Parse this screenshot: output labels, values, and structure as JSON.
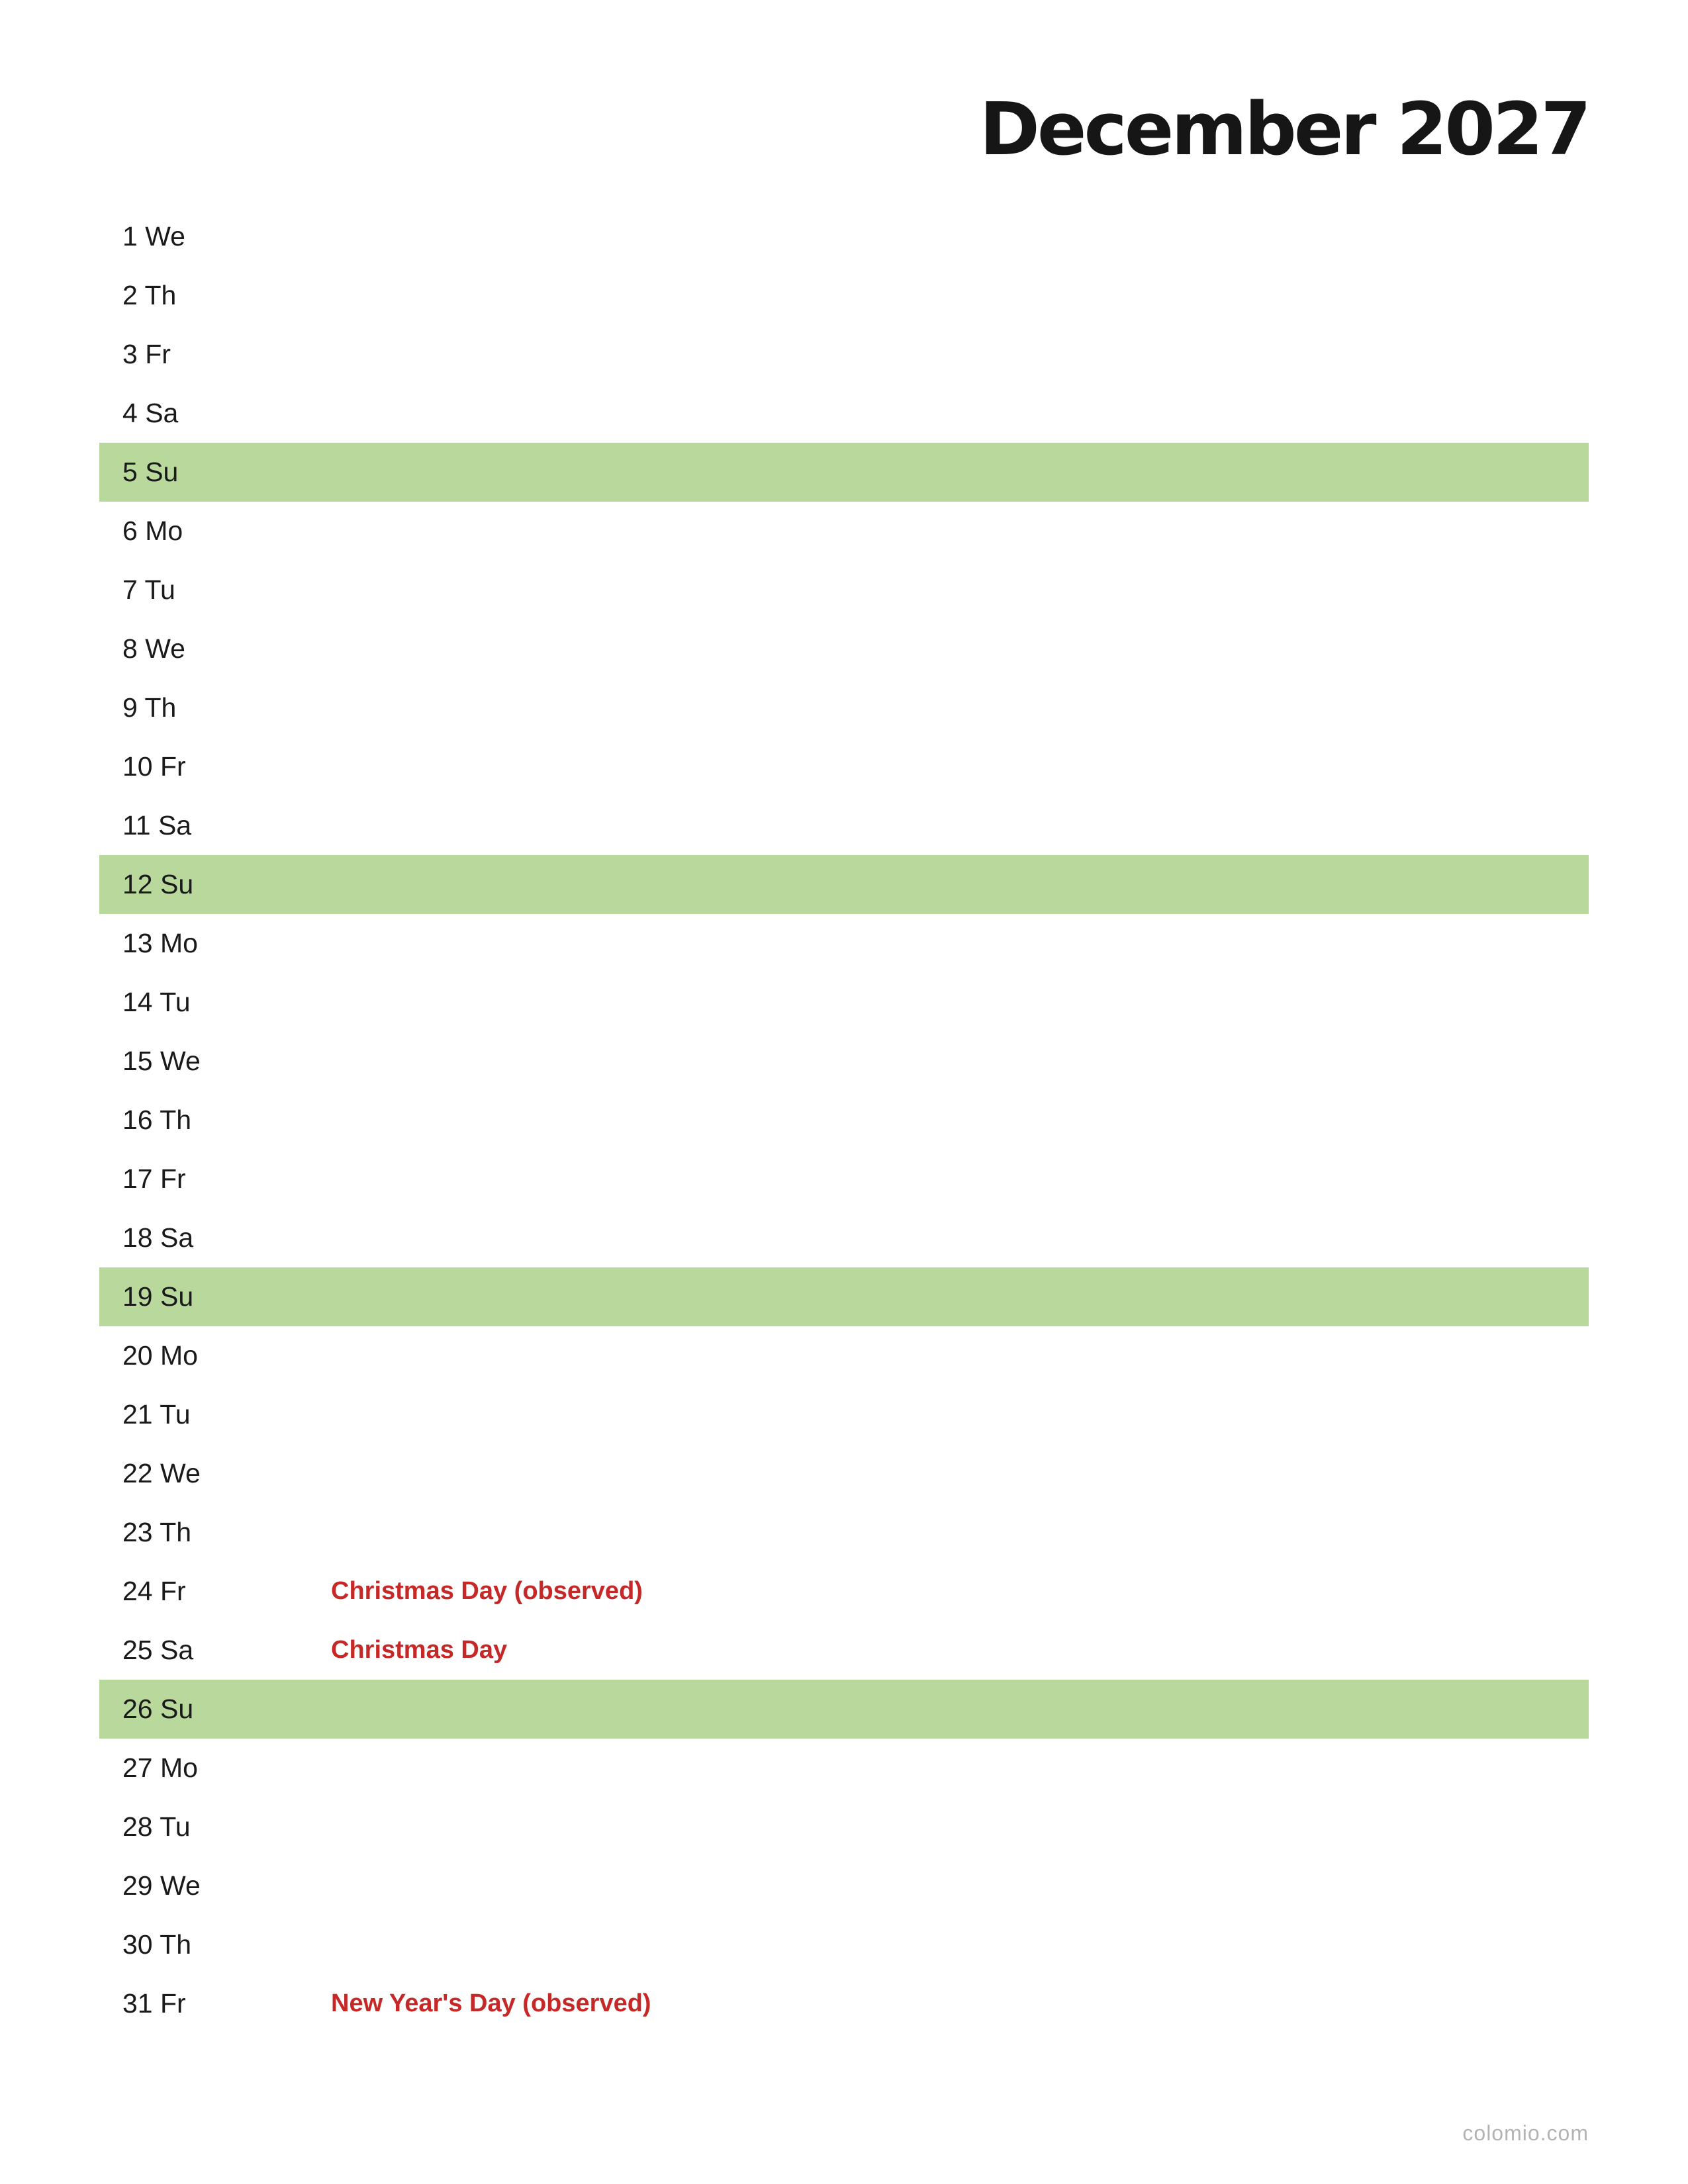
{
  "title": "December 2027",
  "colors": {
    "sunday_highlight": "#b8d99b",
    "holiday_text": "#c62828",
    "footer_text": "#b3b3b3"
  },
  "days": [
    {
      "label": "1 We",
      "holiday": "",
      "sunday": false
    },
    {
      "label": "2 Th",
      "holiday": "",
      "sunday": false
    },
    {
      "label": "3 Fr",
      "holiday": "",
      "sunday": false
    },
    {
      "label": "4 Sa",
      "holiday": "",
      "sunday": false
    },
    {
      "label": "5 Su",
      "holiday": "",
      "sunday": true
    },
    {
      "label": "6 Mo",
      "holiday": "",
      "sunday": false
    },
    {
      "label": "7 Tu",
      "holiday": "",
      "sunday": false
    },
    {
      "label": "8 We",
      "holiday": "",
      "sunday": false
    },
    {
      "label": "9 Th",
      "holiday": "",
      "sunday": false
    },
    {
      "label": "10 Fr",
      "holiday": "",
      "sunday": false
    },
    {
      "label": "11 Sa",
      "holiday": "",
      "sunday": false
    },
    {
      "label": "12 Su",
      "holiday": "",
      "sunday": true
    },
    {
      "label": "13 Mo",
      "holiday": "",
      "sunday": false
    },
    {
      "label": "14 Tu",
      "holiday": "",
      "sunday": false
    },
    {
      "label": "15 We",
      "holiday": "",
      "sunday": false
    },
    {
      "label": "16 Th",
      "holiday": "",
      "sunday": false
    },
    {
      "label": "17 Fr",
      "holiday": "",
      "sunday": false
    },
    {
      "label": "18 Sa",
      "holiday": "",
      "sunday": false
    },
    {
      "label": "19 Su",
      "holiday": "",
      "sunday": true
    },
    {
      "label": "20 Mo",
      "holiday": "",
      "sunday": false
    },
    {
      "label": "21 Tu",
      "holiday": "",
      "sunday": false
    },
    {
      "label": "22 We",
      "holiday": "",
      "sunday": false
    },
    {
      "label": "23 Th",
      "holiday": "",
      "sunday": false
    },
    {
      "label": "24 Fr",
      "holiday": "Christmas Day (observed)",
      "sunday": false
    },
    {
      "label": "25 Sa",
      "holiday": "Christmas Day",
      "sunday": false
    },
    {
      "label": "26 Su",
      "holiday": "",
      "sunday": true
    },
    {
      "label": "27 Mo",
      "holiday": "",
      "sunday": false
    },
    {
      "label": "28 Tu",
      "holiday": "",
      "sunday": false
    },
    {
      "label": "29 We",
      "holiday": "",
      "sunday": false
    },
    {
      "label": "30 Th",
      "holiday": "",
      "sunday": false
    },
    {
      "label": "31 Fr",
      "holiday": "New Year's Day (observed)",
      "sunday": false
    }
  ],
  "footer": "colomio.com"
}
